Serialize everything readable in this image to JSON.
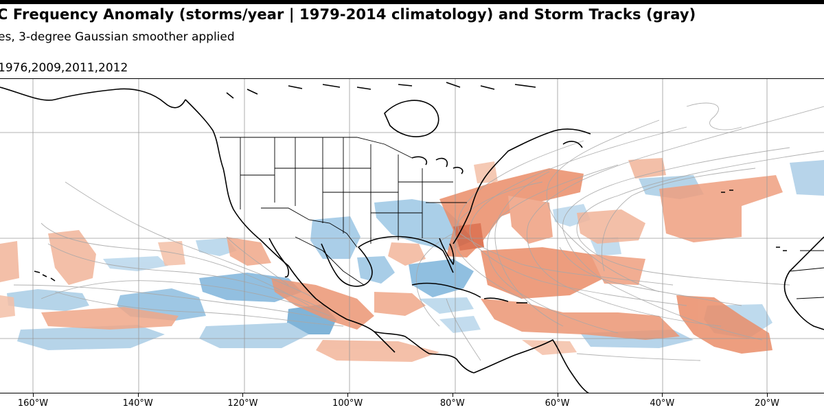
{
  "figure": {
    "title": "C Frequency Anomaly (storms/year | 1979-2014 climatology) and Storm Tracks (gray)",
    "subtitle_line1": "es, 3-degree Gaussian smoother applied",
    "subtitle_line2": "1976,2009,2011,2012",
    "longitude_ticks": [
      {
        "value": -160,
        "label": "160°W"
      },
      {
        "value": -140,
        "label": "140°W"
      },
      {
        "value": -120,
        "label": "120°W"
      },
      {
        "value": -100,
        "label": "100°W"
      },
      {
        "value": -80,
        "label": "80°W"
      },
      {
        "value": -60,
        "label": "60°W"
      },
      {
        "value": -40,
        "label": "40°W"
      },
      {
        "value": -20,
        "label": "20°W"
      }
    ],
    "colors": {
      "positive_anomaly": "#e8865f",
      "negative_anomaly": "#74aed6",
      "storm_track": "#a8a8a8",
      "coastline": "#000000",
      "gridline": "#9a9a9a"
    }
  }
}
